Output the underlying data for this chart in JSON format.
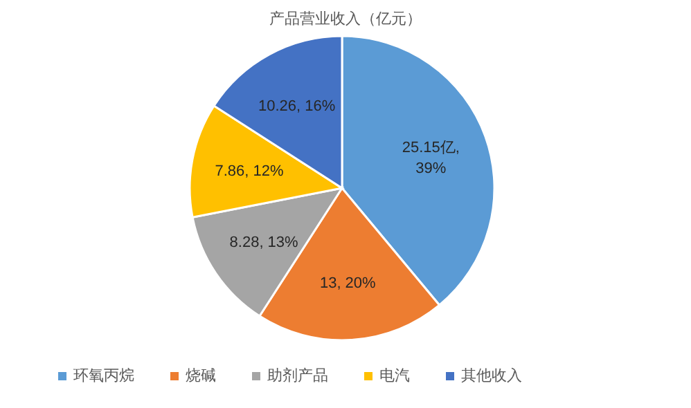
{
  "chart_data": {
    "type": "pie",
    "title": "产品营业收入（亿元）",
    "categories": [
      "环氧丙烷",
      "烧碱",
      "助剂产品",
      "电汽",
      "其他收入"
    ],
    "values": [
      25.15,
      13,
      8.28,
      7.86,
      10.26
    ],
    "colors": [
      "#5b9bd5",
      "#ed7d31",
      "#a5a5a5",
      "#ffc000",
      "#4472c4"
    ],
    "value_labels": [
      "25.15亿, 39%",
      "13, 20%",
      "8.28, 13%",
      "7.86, 12%",
      "10.26, 16%"
    ],
    "legend": "bottom"
  }
}
